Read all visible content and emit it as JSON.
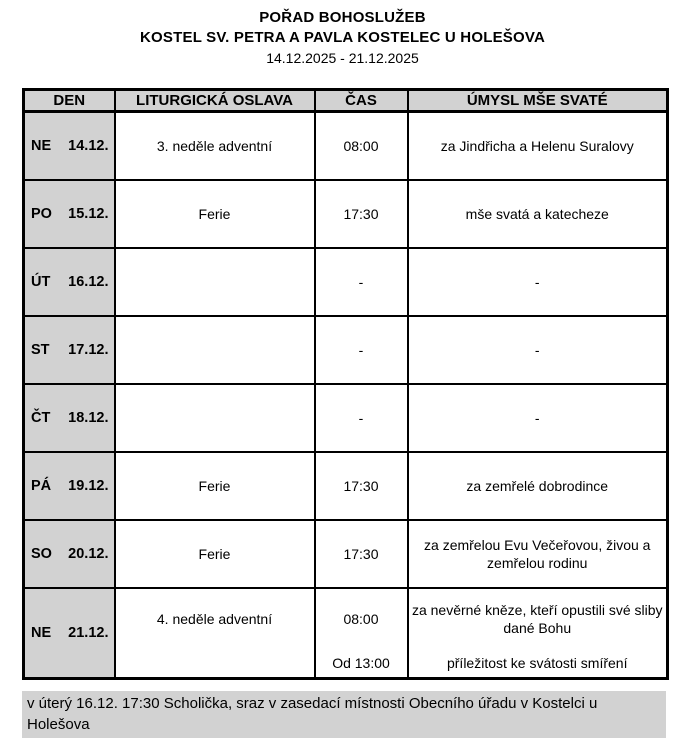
{
  "page": {
    "title": "POŘAD BOHOSLUŽEB",
    "subtitle": "KOSTEL SV. PETRA A PAVLA KOSTELEC U HOLEŠOVA",
    "date_range": "14.12.2025 - 21.12.2025"
  },
  "schedule_table": {
    "columns": {
      "den": "DEN",
      "oslava": "LITURGICKÁ OSLAVA",
      "cas": "ČAS",
      "umysl": "ÚMYSL MŠE SVATÉ"
    },
    "rows": [
      {
        "day": "NE",
        "date": "14.12.",
        "celebration": "3. neděle adventní",
        "time": "08:00",
        "intention": "za Jindřicha a Helenu Suralovy"
      },
      {
        "day": "PO",
        "date": "15.12.",
        "celebration": "Ferie",
        "time": "17:30",
        "intention": "mše svatá a katecheze"
      },
      {
        "day": "ÚT",
        "date": "16.12.",
        "celebration": "",
        "time": "-",
        "intention": "-"
      },
      {
        "day": "ST",
        "date": "17.12.",
        "celebration": "",
        "time": "-",
        "intention": "-"
      },
      {
        "day": "ČT",
        "date": "18.12.",
        "celebration": "",
        "time": "-",
        "intention": "-"
      },
      {
        "day": "PÁ",
        "date": "19.12.",
        "celebration": "Ferie",
        "time": "17:30",
        "intention": "za zemřelé dobrodince"
      },
      {
        "day": "SO",
        "date": "20.12.",
        "celebration": "Ferie",
        "time": "17:30",
        "intention": "za zemřelou Evu Večeřovou, živou a zemřelou rodinu"
      },
      {
        "day": "NE",
        "date": "21.12.",
        "celebration": "4. neděle adventní",
        "time": "08:00",
        "intention": "za nevěrné kněze, kteří opustili své sliby dané Bohu",
        "time2": "Od 13:00",
        "intention2": "příležitost ke svátosti smíření"
      }
    ]
  },
  "footer": {
    "note": "v úterý 16.12. 17:30 Scholička, sraz v zasedací místnosti Obecního úřadu v Kostelci u Holešova"
  },
  "colors": {
    "cell_gray": "#d2d2d2",
    "border": "#000000",
    "background": "#ffffff"
  }
}
